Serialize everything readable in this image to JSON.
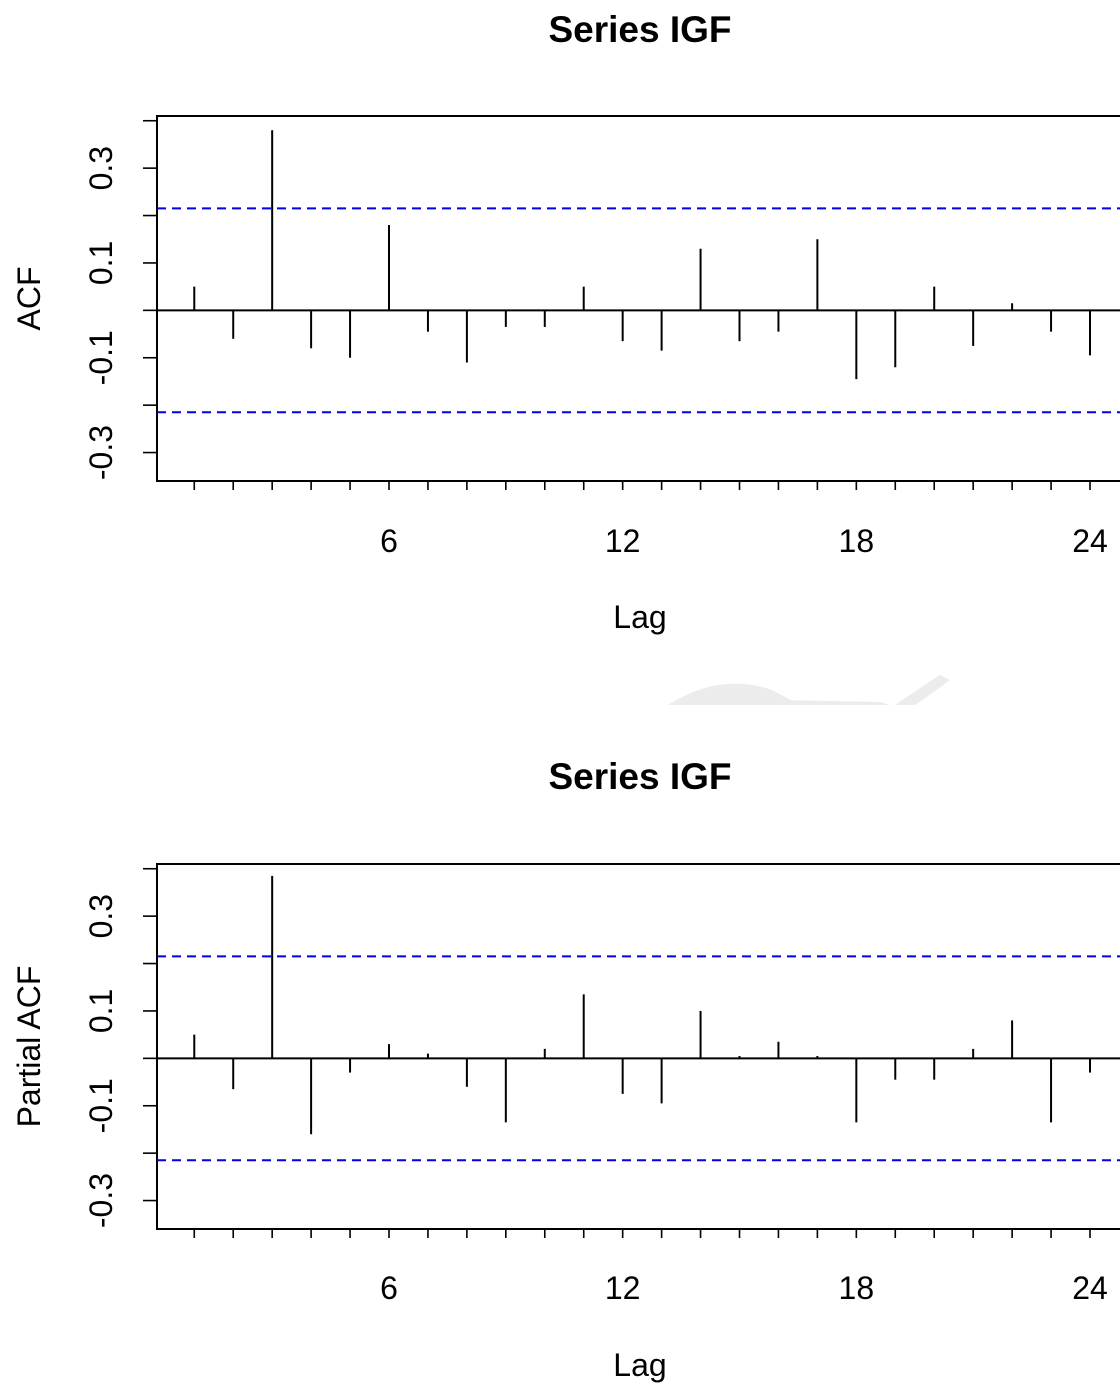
{
  "chart_data": [
    {
      "type": "bar",
      "title": "Series  IGF",
      "xlabel": "Lag",
      "ylabel": "ACF",
      "x_ticks": [
        6,
        12,
        18,
        24
      ],
      "x_tick_labels": [
        "6",
        "12",
        "18",
        "24"
      ],
      "y_ticks": [
        -0.3,
        -0.1,
        0.1,
        0.3
      ],
      "y_tick_labels": [
        "-0.3",
        "-0.1",
        "0.1",
        "0.3"
      ],
      "ylim": [
        -0.36,
        0.41
      ],
      "xlim": [
        0.1,
        25
      ],
      "confidence_band": {
        "upper": 0.215,
        "lower": -0.215,
        "color": "#0000ee",
        "style": "dashed"
      },
      "lags": [
        1,
        2,
        3,
        4,
        5,
        6,
        7,
        8,
        9,
        10,
        11,
        12,
        13,
        14,
        15,
        16,
        17,
        18,
        19,
        20,
        21,
        22,
        23,
        24
      ],
      "values": [
        0.05,
        -0.06,
        0.38,
        -0.08,
        -0.1,
        0.18,
        -0.045,
        -0.11,
        -0.035,
        -0.035,
        0.05,
        -0.065,
        -0.085,
        0.13,
        -0.065,
        -0.045,
        0.15,
        -0.145,
        -0.12,
        0.05,
        -0.075,
        0.015,
        -0.045,
        -0.095
      ]
    },
    {
      "type": "bar",
      "title": "Series  IGF",
      "xlabel": "Lag",
      "ylabel": "Partial ACF",
      "x_ticks": [
        6,
        12,
        18,
        24
      ],
      "x_tick_labels": [
        "6",
        "12",
        "18",
        "24"
      ],
      "y_ticks": [
        -0.3,
        -0.1,
        0.1,
        0.3
      ],
      "y_tick_labels": [
        "-0.3",
        "-0.1",
        "0.1",
        "0.3"
      ],
      "ylim": [
        -0.36,
        0.41
      ],
      "xlim": [
        0.1,
        25
      ],
      "confidence_band": {
        "upper": 0.215,
        "lower": -0.215,
        "color": "#0000ee",
        "style": "dashed"
      },
      "lags": [
        1,
        2,
        3,
        4,
        5,
        6,
        7,
        8,
        9,
        10,
        11,
        12,
        13,
        14,
        15,
        16,
        17,
        18,
        19,
        20,
        21,
        22,
        23,
        24
      ],
      "values": [
        0.05,
        -0.065,
        0.385,
        -0.16,
        -0.03,
        0.03,
        0.01,
        -0.06,
        -0.135,
        0.02,
        0.135,
        -0.075,
        -0.095,
        0.1,
        0.005,
        0.035,
        0.005,
        -0.135,
        -0.045,
        -0.045,
        0.02,
        0.08,
        -0.135,
        -0.03
      ]
    }
  ]
}
